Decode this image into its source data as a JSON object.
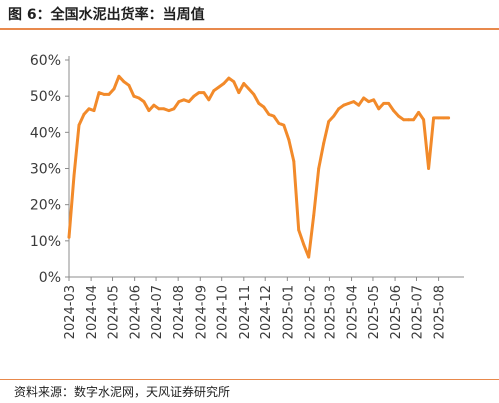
{
  "header": {
    "title": "图 6：全国水泥出货率：当周值"
  },
  "footer": {
    "source": "资料来源：数字水泥网，天风证券研究所"
  },
  "colors": {
    "line": "#f28a2a",
    "accent_rule": "#e8894c",
    "axis": "#8c8c8c"
  },
  "chart_data": {
    "type": "line",
    "title": "全国水泥出货率：当周值",
    "xlabel": "",
    "ylabel": "",
    "ylim": [
      0,
      60
    ],
    "yticks": [
      "0%",
      "10%",
      "20%",
      "30%",
      "40%",
      "50%",
      "60%"
    ],
    "grid": false,
    "legend": "none",
    "x_tick_labels": [
      "2024-03",
      "2024-04",
      "2024-05",
      "2024-06",
      "2024-07",
      "2024-08",
      "2024-09",
      "2024-10",
      "2024-11",
      "2024-12",
      "2025-01",
      "2025-02",
      "2025-03",
      "2025-04",
      "2025-05",
      "2025-06",
      "2025-07",
      "2025-08"
    ],
    "series": [
      {
        "name": "",
        "x": [
          "2024-03-01",
          "2024-03-08",
          "2024-03-15",
          "2024-03-22",
          "2024-03-29",
          "2024-04-05",
          "2024-04-12",
          "2024-04-19",
          "2024-04-26",
          "2024-05-03",
          "2024-05-10",
          "2024-05-17",
          "2024-05-24",
          "2024-05-31",
          "2024-06-07",
          "2024-06-14",
          "2024-06-21",
          "2024-06-28",
          "2024-07-05",
          "2024-07-12",
          "2024-07-19",
          "2024-07-26",
          "2024-08-02",
          "2024-08-09",
          "2024-08-16",
          "2024-08-23",
          "2024-08-30",
          "2024-09-06",
          "2024-09-13",
          "2024-09-20",
          "2024-09-27",
          "2024-10-04",
          "2024-10-11",
          "2024-10-18",
          "2024-10-25",
          "2024-11-01",
          "2024-11-08",
          "2024-11-15",
          "2024-11-22",
          "2024-11-29",
          "2024-12-06",
          "2024-12-13",
          "2024-12-20",
          "2024-12-27",
          "2025-01-03",
          "2025-01-10",
          "2025-01-17",
          "2025-01-24",
          "2025-01-31",
          "2025-02-07",
          "2025-02-14",
          "2025-02-21",
          "2025-02-28",
          "2025-03-07",
          "2025-03-14",
          "2025-03-21",
          "2025-03-28",
          "2025-04-04",
          "2025-04-11",
          "2025-04-18",
          "2025-04-25",
          "2025-05-02",
          "2025-05-09",
          "2025-05-16",
          "2025-05-23",
          "2025-05-30",
          "2025-06-06",
          "2025-06-13",
          "2025-06-20",
          "2025-06-27",
          "2025-07-04",
          "2025-07-11",
          "2025-07-18",
          "2025-07-25",
          "2025-08-01",
          "2025-08-08",
          "2025-08-15"
        ],
        "values": [
          11,
          28,
          42,
          45,
          46.5,
          46,
          51,
          50.5,
          50.5,
          52,
          55.5,
          54,
          53,
          50,
          49.5,
          48.5,
          46,
          47.5,
          46.5,
          46.5,
          46,
          46.5,
          48.5,
          49,
          48.5,
          50,
          51,
          51,
          49,
          51.5,
          52.5,
          53.5,
          55,
          54,
          51,
          53.5,
          52,
          50.5,
          48,
          47,
          45,
          44.5,
          42.5,
          42,
          38,
          32,
          13,
          9,
          5.5,
          17,
          30,
          37,
          43,
          44.5,
          46.5,
          47.5,
          48,
          48.5,
          47.5,
          49.5,
          48.5,
          49,
          46.5,
          48,
          48,
          46,
          44.5,
          43.5,
          43.5,
          43.5,
          45.5,
          43.5,
          30,
          44,
          44,
          44,
          44
        ]
      }
    ]
  }
}
